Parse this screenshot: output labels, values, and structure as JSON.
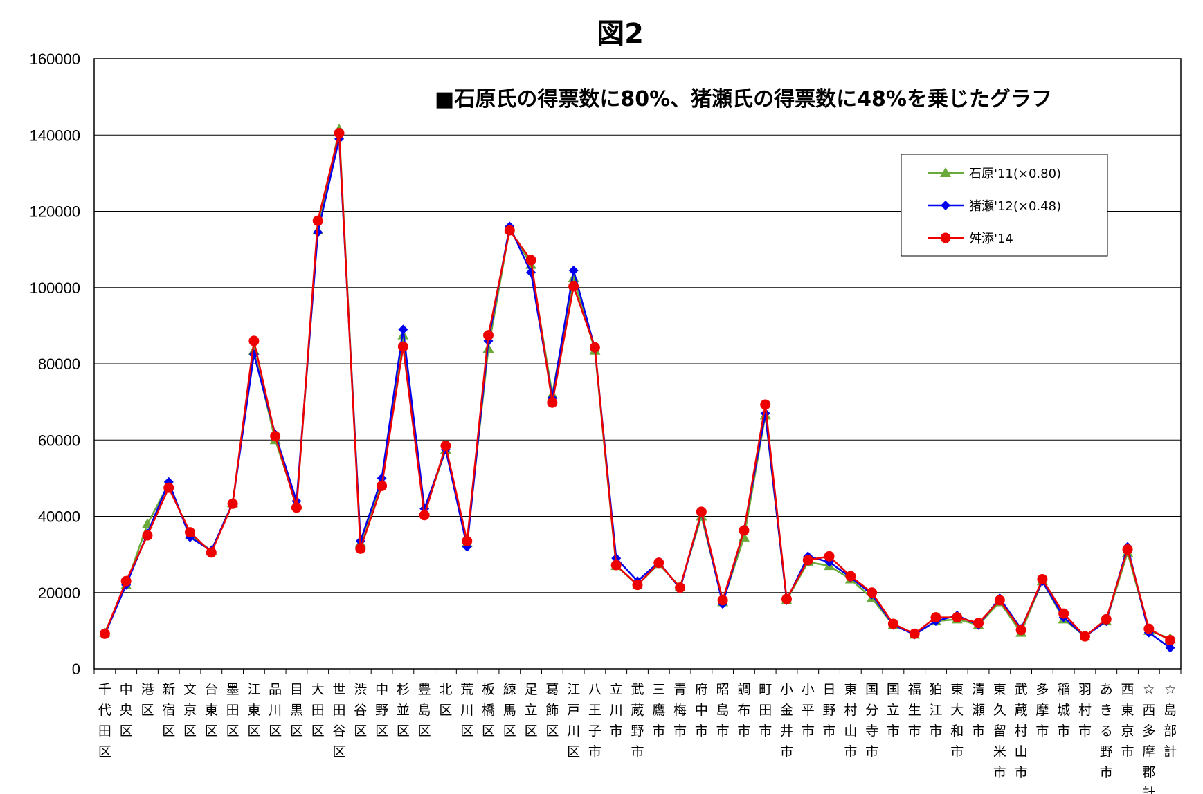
{
  "chart_data": {
    "type": "line",
    "title": "図2",
    "subtitle": "■石原氏の得票数に80%、猪瀬氏の得票数に48%を乗じたグラフ",
    "xlabel": "",
    "ylabel": "",
    "ylim": [
      0,
      160000
    ],
    "yticks": [
      "0",
      "20000",
      "40000",
      "60000",
      "80000",
      "100000",
      "120000",
      "140000",
      "160000"
    ],
    "grid": "horizontal",
    "legend_position": "top-right",
    "categories": [
      "千代田区",
      "中央区",
      "港区",
      "新宿区",
      "文京区",
      "台東区",
      "墨田区",
      "江東区",
      "品川区",
      "目黒区",
      "大田区",
      "世田谷区",
      "渋谷区",
      "中野区",
      "杉並区",
      "豊島区",
      "北区",
      "荒川区",
      "板橋区",
      "練馬区",
      "足立区",
      "葛飾区",
      "江戸川区",
      "八王子市",
      "立川市",
      "武蔵野市",
      "三鷹市",
      "青梅市",
      "府中市",
      "昭島市",
      "調布市",
      "町田市",
      "小金井市",
      "小平市",
      "日野市",
      "東村山市",
      "国分寺市",
      "国立市",
      "福生市",
      "狛江市",
      "東大和市",
      "清瀬市",
      "東久留米市",
      "武蔵村山市",
      "多摩市",
      "稲城市",
      "羽村市",
      "あきる野市",
      "西東京市",
      "☆西多摩郡計",
      "☆島部計"
    ],
    "series": [
      {
        "name": "石原'11(×0.80)",
        "color": "#6aaa3a",
        "marker": "triangle",
        "values": [
          9500,
          22000,
          38000,
          48500,
          35000,
          31000,
          43500,
          83500,
          60000,
          43000,
          115000,
          141500,
          33000,
          49000,
          87500,
          41000,
          57500,
          33000,
          84000,
          115500,
          106000,
          72000,
          102500,
          83500,
          27000,
          22000,
          27500,
          21500,
          40000,
          17500,
          34500,
          66500,
          18000,
          28000,
          27000,
          23500,
          18500,
          11500,
          9000,
          12500,
          13000,
          11500,
          17500,
          9500,
          23000,
          13000,
          8500,
          12500,
          30500,
          10000,
          8000
        ]
      },
      {
        "name": "猪瀬'12(×0.48)",
        "color": "#0000ee",
        "marker": "diamond",
        "values": [
          9000,
          22000,
          35500,
          49000,
          34500,
          31000,
          43500,
          82500,
          61500,
          44000,
          114500,
          139000,
          33500,
          50000,
          89000,
          42000,
          57500,
          32000,
          86000,
          116000,
          104000,
          71000,
          104500,
          84000,
          29000,
          23000,
          28000,
          21000,
          41000,
          17000,
          36500,
          67000,
          18000,
          29500,
          28000,
          24000,
          19500,
          11500,
          9000,
          12500,
          14000,
          11500,
          18500,
          10500,
          23000,
          13500,
          8500,
          12500,
          32000,
          9500,
          5500
        ]
      },
      {
        "name": "舛添'14",
        "color": "#ee0000",
        "marker": "circle",
        "values": [
          9200,
          23000,
          35000,
          47500,
          35800,
          30500,
          43300,
          86000,
          61000,
          42300,
          117500,
          140500,
          31500,
          48000,
          84500,
          40300,
          58500,
          33500,
          87500,
          115000,
          107200,
          69800,
          100300,
          84300,
          27200,
          22000,
          27800,
          21300,
          41200,
          18000,
          36300,
          69300,
          18300,
          28500,
          29500,
          24300,
          20000,
          11800,
          9200,
          13500,
          13500,
          12000,
          18000,
          10200,
          23500,
          14500,
          8500,
          13000,
          31300,
          10500,
          7500
        ]
      }
    ]
  }
}
